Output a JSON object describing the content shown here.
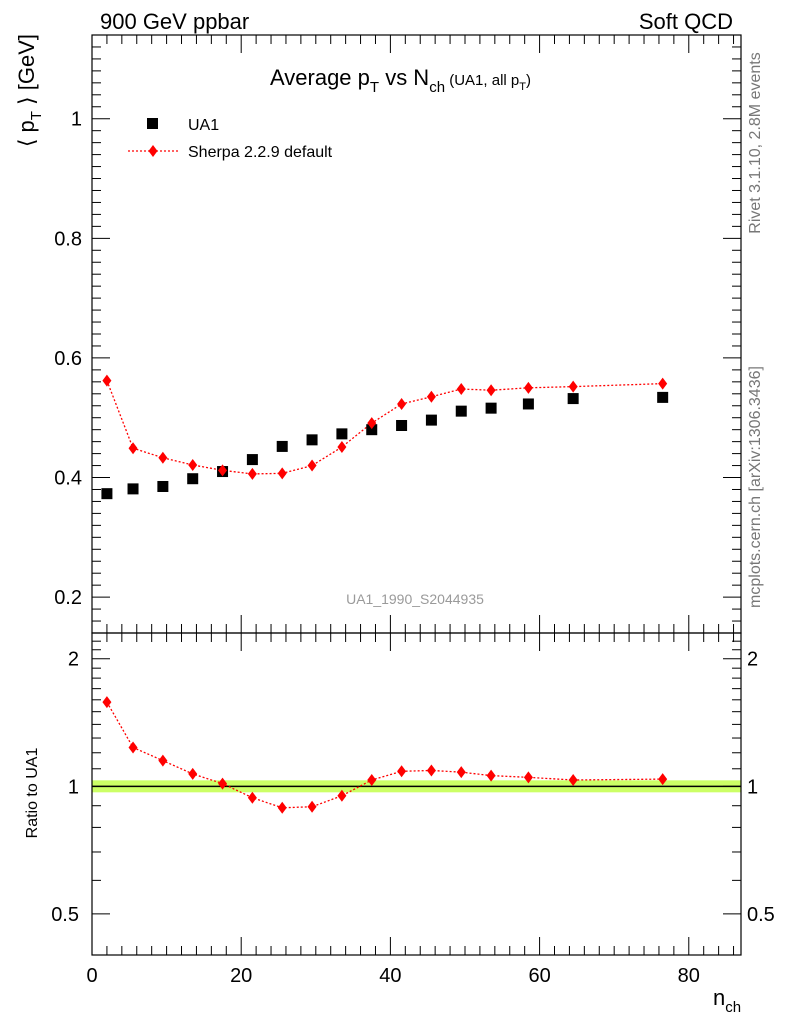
{
  "header": {
    "left": "900 GeV ppbar",
    "right": "Soft QCD"
  },
  "side": {
    "rivet": "Rivet 3.1.10,  2.8M events",
    "mcplots": "mcplots.cern.ch [arXiv:1306.3436]"
  },
  "analysis_id": "UA1_1990_S2044935",
  "chart_data": [
    {
      "type": "scatter",
      "title": "Average p_T vs N_ch (UA1, all p_T)",
      "title_parts": {
        "main": "Average p",
        "sub1": "T",
        "mid": " vs N",
        "sub2": "ch",
        "paren": " (UA1, all p",
        "sub3": "T",
        "close": ")"
      },
      "ylabel_parts": {
        "a": "⟨ p",
        "sub": "T",
        "b": " ⟩ [GeV]"
      },
      "xlim": [
        0,
        87
      ],
      "ylim": [
        0.14,
        1.14
      ],
      "yticks": [
        0.2,
        0.4,
        0.6,
        0.8,
        1
      ],
      "ytick_labels": [
        "0.2",
        "0.4",
        "0.6",
        "0.8",
        "1"
      ],
      "legend": {
        "placement": "top-left",
        "entries": [
          "UA1",
          "Sherpa 2.2.9 default"
        ]
      },
      "series": [
        {
          "name": "UA1",
          "style": "square-marker",
          "color": "#000000",
          "x": [
            2,
            5.5,
            9.5,
            13.5,
            17.5,
            21.5,
            25.5,
            29.5,
            33.5,
            37.5,
            41.5,
            45.5,
            49.5,
            53.5,
            58.5,
            64.5,
            76.5
          ],
          "y": [
            0.373,
            0.381,
            0.385,
            0.398,
            0.41,
            0.43,
            0.452,
            0.463,
            0.473,
            0.48,
            0.487,
            0.496,
            0.511,
            0.516,
            0.523,
            0.532,
            0.534
          ]
        },
        {
          "name": "Sherpa 2.2.9 default",
          "style": "diamond-dotted-line",
          "color": "#ff0000",
          "x": [
            2,
            5.5,
            9.5,
            13.5,
            17.5,
            21.5,
            25.5,
            29.5,
            33.5,
            37.5,
            41.5,
            45.5,
            49.5,
            53.5,
            58.5,
            64.5,
            76.5
          ],
          "y": [
            0.562,
            0.449,
            0.433,
            0.421,
            0.412,
            0.406,
            0.407,
            0.42,
            0.451,
            0.491,
            0.523,
            0.535,
            0.548,
            0.546,
            0.55,
            0.552,
            0.557
          ]
        }
      ]
    },
    {
      "type": "scatter",
      "ylabel": "Ratio to UA1",
      "xlabel_parts": {
        "main": "n",
        "sub": "ch"
      },
      "xlim": [
        0,
        87
      ],
      "ylim": [
        0.4,
        2.3
      ],
      "yscale": "log",
      "yticks": [
        0.5,
        1,
        2
      ],
      "ytick_labels": [
        "0.5",
        "1",
        "2"
      ],
      "xticks": [
        0,
        20,
        40,
        60,
        80
      ],
      "xtick_labels": [
        "0",
        "20",
        "40",
        "60",
        "80"
      ],
      "band_color": "#ccff66",
      "series": [
        {
          "name": "Sherpa 2.2.9 default",
          "style": "diamond-dotted-line",
          "color": "#ff0000",
          "x": [
            2,
            5.5,
            9.5,
            13.5,
            17.5,
            21.5,
            25.5,
            29.5,
            33.5,
            37.5,
            41.5,
            45.5,
            49.5,
            53.5,
            58.5,
            64.5,
            76.5
          ],
          "y": [
            1.58,
            1.235,
            1.15,
            1.07,
            1.015,
            0.94,
            0.89,
            0.895,
            0.95,
            1.035,
            1.085,
            1.09,
            1.08,
            1.06,
            1.05,
            1.035,
            1.04
          ]
        }
      ]
    }
  ]
}
